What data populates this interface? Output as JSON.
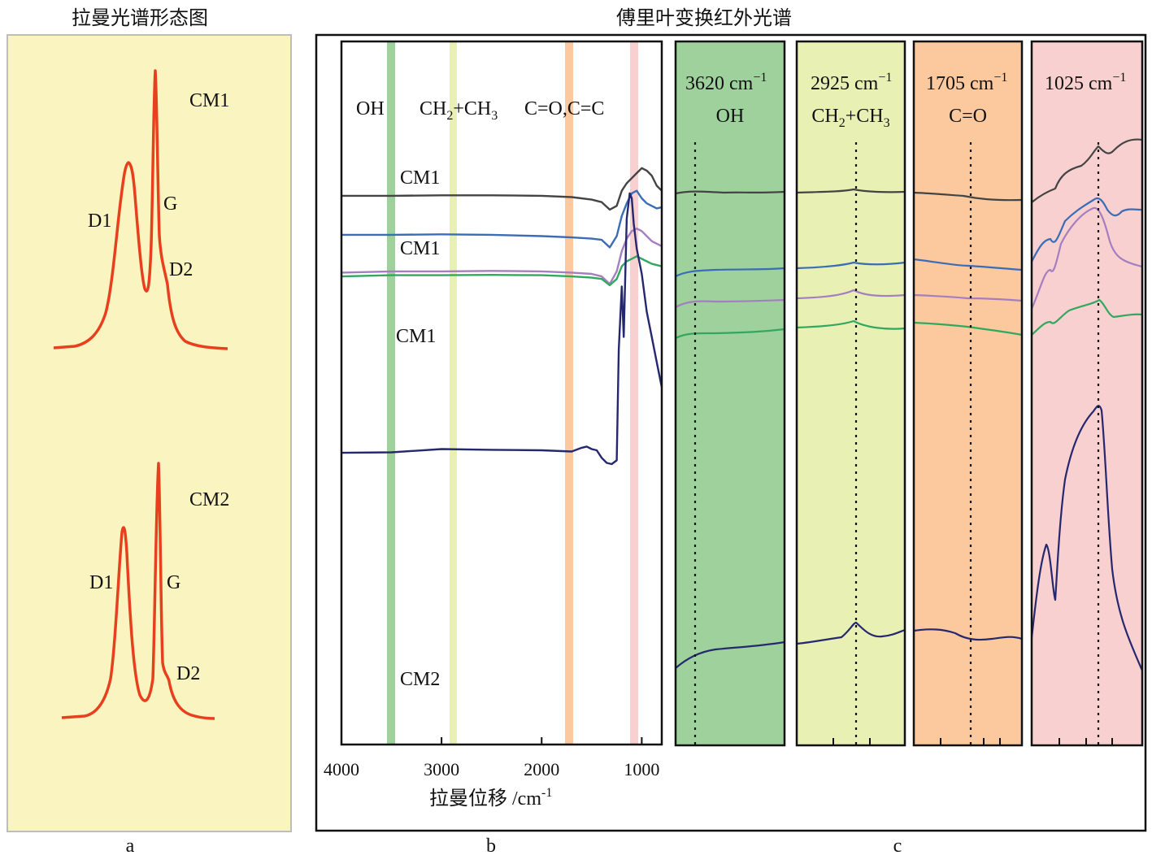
{
  "captions": {
    "raman_title": "拉曼光谱形态图",
    "ftir_title": "傅里叶变换红外光谱",
    "panel_a": "a",
    "panel_b": "b",
    "panel_c": "c"
  },
  "colors": {
    "raman_panel_bg": "#faf5c0",
    "raman_curve": "#e8401f",
    "band_oh": "#9ed19c",
    "band_ch": "#e9f0b4",
    "band_co": "#fcc89d",
    "band_1025": "#f8d0d0",
    "series_dark_gray": "#444444",
    "series_blue": "#3a6db5",
    "series_purple": "#a57ec0",
    "series_green": "#31a85f",
    "series_navy": "#26286f"
  },
  "chart_data": [
    {
      "type": "line",
      "panel": "a",
      "title": "拉曼光谱形态图",
      "note": "Schematic Raman spectra (no numeric axes).",
      "samples": [
        {
          "name": "CM1",
          "peaks": [
            "D1",
            "G",
            "D2"
          ]
        },
        {
          "name": "CM2",
          "peaks": [
            "D1",
            "G",
            "D2"
          ]
        }
      ]
    },
    {
      "type": "line",
      "panel": "b",
      "title": "傅里叶变换红外光谱",
      "xlabel": "拉曼位移 /cm",
      "xlabel_superscript": "-1",
      "xlim": [
        4000,
        800
      ],
      "xticks": [
        4000,
        3000,
        2000,
        1000
      ],
      "grid": false,
      "bands": [
        {
          "label": "OH",
          "center": 3500
        },
        {
          "label": "CH",
          "label_sub1": "2",
          "label_mid": "+CH",
          "label_sub2": "3",
          "center": 2880
        },
        {
          "label": "C=O,C=C",
          "center": 1720
        },
        {
          "label": "",
          "center": 1050
        }
      ],
      "series": [
        {
          "name": "CM1",
          "color": "#444444",
          "x": [
            4000,
            3500,
            3000,
            2500,
            2000,
            1700,
            1500,
            1400,
            1320,
            1250,
            1200,
            1150,
            1100,
            1050,
            1000,
            950,
            900,
            850,
            800
          ],
          "y": [
            0.61,
            0.61,
            0.612,
            0.612,
            0.61,
            0.605,
            0.595,
            0.585,
            0.555,
            0.57,
            0.63,
            0.66,
            0.68,
            0.7,
            0.72,
            0.71,
            0.69,
            0.65,
            0.63
          ]
        },
        {
          "name": "CM1",
          "color": "#3a6db5",
          "x": [
            4000,
            3500,
            3000,
            2500,
            2000,
            1700,
            1500,
            1400,
            1320,
            1250,
            1200,
            1150,
            1100,
            1050,
            1000,
            950,
            900,
            850,
            800
          ],
          "y": [
            0.455,
            0.455,
            0.457,
            0.455,
            0.45,
            0.445,
            0.44,
            0.435,
            0.405,
            0.45,
            0.53,
            0.58,
            0.62,
            0.63,
            0.6,
            0.58,
            0.57,
            0.56,
            0.565
          ]
        },
        {
          "name": "",
          "color": "#a57ec0",
          "x": [
            4000,
            3500,
            3000,
            2500,
            2000,
            1700,
            1500,
            1400,
            1320,
            1250,
            1200,
            1150,
            1100,
            1050,
            1000,
            950,
            900,
            850,
            800
          ],
          "y": [
            0.305,
            0.31,
            0.31,
            0.312,
            0.31,
            0.305,
            0.3,
            0.29,
            0.26,
            0.31,
            0.39,
            0.44,
            0.47,
            0.48,
            0.47,
            0.45,
            0.43,
            0.42,
            0.41
          ]
        },
        {
          "name": "CM1",
          "color": "#31a85f",
          "x": [
            4000,
            3500,
            3000,
            2500,
            2000,
            1700,
            1500,
            1400,
            1320,
            1250,
            1200,
            1150,
            1100,
            1050,
            1000,
            950,
            900,
            850,
            800
          ],
          "y": [
            0.29,
            0.295,
            0.295,
            0.296,
            0.295,
            0.29,
            0.285,
            0.28,
            0.255,
            0.28,
            0.33,
            0.35,
            0.36,
            0.37,
            0.36,
            0.35,
            0.34,
            0.335,
            0.33
          ]
        },
        {
          "name": "CM2",
          "color": "#26286f",
          "x": [
            4000,
            3500,
            3000,
            2500,
            2000,
            1700,
            1600,
            1550,
            1500,
            1450,
            1400,
            1350,
            1300,
            1250,
            1230,
            1200,
            1180,
            1150,
            1120,
            1100,
            1080,
            1050,
            1000,
            950,
            900,
            850,
            800
          ],
          "y": [
            -0.41,
            -0.408,
            -0.395,
            -0.398,
            -0.4,
            -0.405,
            -0.39,
            -0.385,
            -0.395,
            -0.4,
            -0.43,
            -0.45,
            -0.455,
            -0.44,
            0.0,
            0.25,
            0.05,
            0.52,
            0.62,
            0.6,
            0.5,
            0.4,
            0.3,
            0.15,
            0.05,
            -0.05,
            -0.15
          ]
        }
      ],
      "series_labels": [
        "CM1",
        "CM1",
        "CM1",
        "CM2"
      ]
    },
    {
      "type": "line",
      "panel": "c",
      "title": "傅里叶变换红外光谱",
      "subpanels": [
        {
          "peak": "3620 cm",
          "peak_sup": "−1",
          "group": "OH"
        },
        {
          "peak": "2925 cm",
          "peak_sup": "−1",
          "group": "CH",
          "group_sub1": "2",
          "group_mid": "+CH",
          "group_sub2": "3"
        },
        {
          "peak": "1705 cm",
          "peak_sup": "−1",
          "group": "C=O"
        },
        {
          "peak": "1025 cm",
          "peak_sup": "−1",
          "group": ""
        }
      ]
    }
  ]
}
